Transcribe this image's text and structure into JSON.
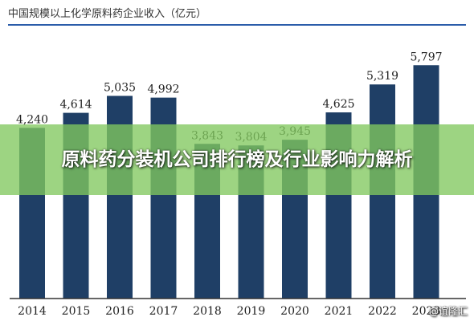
{
  "chart_data": {
    "type": "bar",
    "title": "中国规模以上化学原料药企业收入（亿元）",
    "categories": [
      "2014",
      "2015",
      "2016",
      "2017",
      "2018",
      "2019",
      "2020",
      "2021",
      "2022",
      "2023"
    ],
    "values": [
      4240,
      4614,
      5035,
      4992,
      3843,
      3804,
      3945,
      4625,
      5319,
      5797
    ],
    "value_labels": [
      "4,240",
      "4,614",
      "5,035",
      "4,992",
      "3,843",
      "3,804",
      "3,945",
      "4,625",
      "5,319",
      "5,797"
    ],
    "ylim": [
      0,
      6500
    ],
    "grid": false,
    "legend": "none",
    "colors": {
      "bar": "#1f3f66",
      "rule": "#2a5caa",
      "axis": "#333333"
    }
  },
  "banner": {
    "text": "原料药分装机公司排行榜及行业影响力解析"
  },
  "source": {
    "text": "@谊隆汇"
  }
}
